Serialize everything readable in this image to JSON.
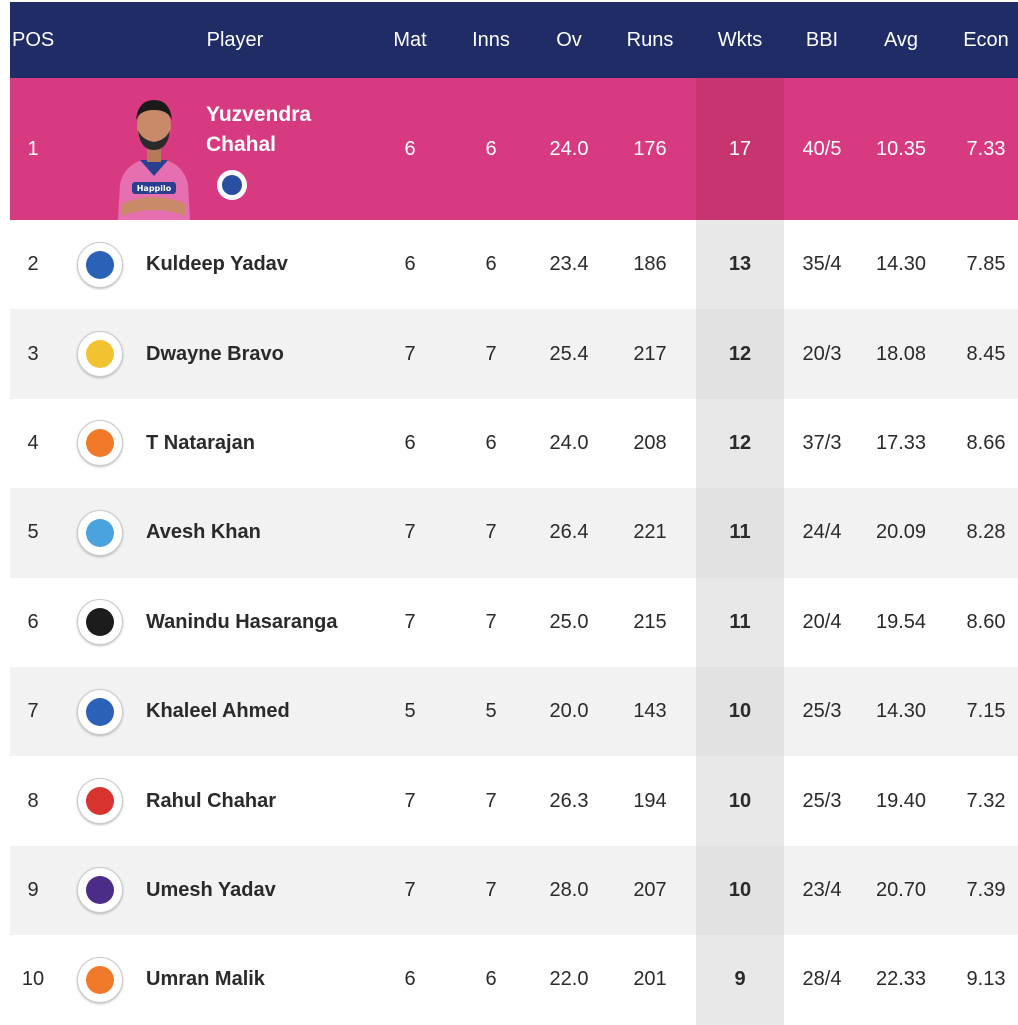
{
  "columns": {
    "pos": "POS",
    "player": "Player",
    "mat": "Mat",
    "inns": "Inns",
    "ov": "Ov",
    "runs": "Runs",
    "wkts": "Wkts",
    "bbi": "BBI",
    "avg": "Avg",
    "econ": "Econ"
  },
  "colors": {
    "header_bg": "#1f2c66",
    "leader_bg": "#d83a82"
  },
  "leader": {
    "pos": "1",
    "first_name": "Yuzvendra",
    "last_name": "Chahal",
    "team_icon": "rajasthan-royals-logo-icon",
    "mat": "6",
    "inns": "6",
    "ov": "24.0",
    "runs": "176",
    "wkts": "17",
    "bbi": "40/5",
    "avg": "10.35",
    "econ": "7.33"
  },
  "rows": [
    {
      "pos": "2",
      "player": "Kuldeep Yadav",
      "team_icon": "delhi-capitals-logo-icon",
      "mat": "6",
      "inns": "6",
      "ov": "23.4",
      "runs": "186",
      "wkts": "13",
      "bbi": "35/4",
      "avg": "14.30",
      "econ": "7.85"
    },
    {
      "pos": "3",
      "player": "Dwayne Bravo",
      "team_icon": "chennai-super-kings-logo-icon",
      "mat": "7",
      "inns": "7",
      "ov": "25.4",
      "runs": "217",
      "wkts": "12",
      "bbi": "20/3",
      "avg": "18.08",
      "econ": "8.45"
    },
    {
      "pos": "4",
      "player": "T Natarajan",
      "team_icon": "sunrisers-hyderabad-logo-icon",
      "mat": "6",
      "inns": "6",
      "ov": "24.0",
      "runs": "208",
      "wkts": "12",
      "bbi": "37/3",
      "avg": "17.33",
      "econ": "8.66"
    },
    {
      "pos": "5",
      "player": "Avesh Khan",
      "team_icon": "lucknow-super-giants-logo-icon",
      "mat": "7",
      "inns": "7",
      "ov": "26.4",
      "runs": "221",
      "wkts": "11",
      "bbi": "24/4",
      "avg": "20.09",
      "econ": "8.28"
    },
    {
      "pos": "6",
      "player": "Wanindu Hasaranga",
      "team_icon": "royal-challengers-bangalore-logo-icon",
      "mat": "7",
      "inns": "7",
      "ov": "25.0",
      "runs": "215",
      "wkts": "11",
      "bbi": "20/4",
      "avg": "19.54",
      "econ": "8.60"
    },
    {
      "pos": "7",
      "player": "Khaleel Ahmed",
      "team_icon": "delhi-capitals-logo-icon",
      "mat": "5",
      "inns": "5",
      "ov": "20.0",
      "runs": "143",
      "wkts": "10",
      "bbi": "25/3",
      "avg": "14.30",
      "econ": "7.15"
    },
    {
      "pos": "8",
      "player": "Rahul Chahar",
      "team_icon": "punjab-kings-logo-icon",
      "mat": "7",
      "inns": "7",
      "ov": "26.3",
      "runs": "194",
      "wkts": "10",
      "bbi": "25/3",
      "avg": "19.40",
      "econ": "7.32"
    },
    {
      "pos": "9",
      "player": "Umesh Yadav",
      "team_icon": "kolkata-knight-riders-logo-icon",
      "mat": "7",
      "inns": "7",
      "ov": "28.0",
      "runs": "207",
      "wkts": "10",
      "bbi": "23/4",
      "avg": "20.70",
      "econ": "7.39"
    },
    {
      "pos": "10",
      "player": "Umran Malik",
      "team_icon": "sunrisers-hyderabad-logo-icon",
      "mat": "6",
      "inns": "6",
      "ov": "22.0",
      "runs": "201",
      "wkts": "9",
      "bbi": "28/4",
      "avg": "22.33",
      "econ": "9.13"
    }
  ]
}
